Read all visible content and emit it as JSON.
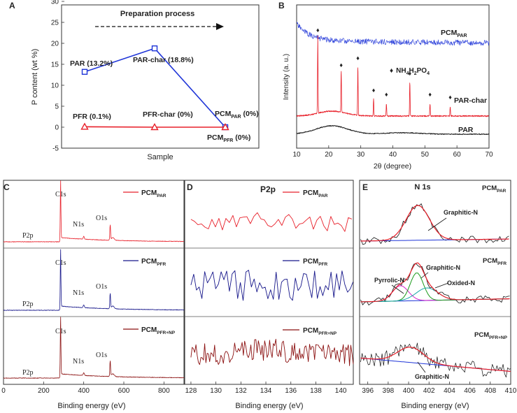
{
  "colors": {
    "red": "#e8202a",
    "blue": "#1f35d8",
    "darkred": "#8b1010",
    "navy": "#16168a",
    "black": "#111111",
    "green": "#1a9a1a",
    "magenta": "#d21cc8",
    "cyan": "#1aa8a8"
  },
  "chart_data": [
    {
      "panel": "A",
      "type": "line",
      "xlabel": "Sample",
      "ylabel": "P content (wt %)",
      "ylim": [
        -5,
        30
      ],
      "yticks": [
        "-5",
        "0",
        "5",
        "10",
        "15",
        "20",
        "25",
        "30"
      ],
      "annotation": "Preparation process",
      "series": [
        {
          "points": [
            {
              "label": "PAR (13.2%)",
              "y": 13.2
            },
            {
              "label": "PAR-char (18.8%)",
              "y": 18.8
            },
            {
              "label_main": "PCM",
              "label_sub": "PAR",
              "label_tail": " (0%)",
              "y": 0
            }
          ]
        },
        {
          "points": [
            {
              "label": "PFR (0.1%)",
              "y": 0.1
            },
            {
              "label": "PFR-char (0%)",
              "y": 0
            },
            {
              "label_main": "PCM",
              "label_sub": "PFR",
              "label_tail": " (0%)",
              "y": 0
            }
          ]
        }
      ]
    },
    {
      "panel": "B",
      "type": "line",
      "xlabel": "2θ (degree)",
      "ylabel": "Intensity (a. u.)",
      "xlim": [
        10,
        70
      ],
      "xticks": [
        "10",
        "20",
        "30",
        "40",
        "50",
        "60",
        "70"
      ],
      "series": [
        {
          "label_main": "PCM",
          "label_sub": "PAR"
        },
        {
          "name": "PAR-char",
          "peaks": [
            16.6,
            23.9,
            29.1,
            34.0,
            38.0,
            45.3,
            51.6,
            57.9
          ]
        },
        {
          "name": "PAR"
        }
      ],
      "legend": {
        "symbol": "♦",
        "main": "NH",
        "s1": "4",
        "mid1": "H",
        "s2": "2",
        "mid2": "PO",
        "s3": "4"
      }
    },
    {
      "panel": "C",
      "type": "line",
      "xlabel": "Binding energy (eV)",
      "xlim": [
        0,
        900
      ],
      "xticks": [
        "0",
        "200",
        "400",
        "600",
        "800"
      ],
      "peak_labels": [
        "C1s",
        "N1s",
        "O1s",
        "P2p"
      ],
      "peaks_ev": [
        284.6,
        400,
        532,
        133
      ],
      "series": [
        {
          "label_main": "PCM",
          "label_sub": "PAR"
        },
        {
          "label_main": "PCM",
          "label_sub": "PFR"
        },
        {
          "label_main": "PCM",
          "label_sub": "PFR+NP"
        }
      ]
    },
    {
      "panel": "D",
      "type": "line",
      "title": "P2p",
      "xlabel": "Binding energy (eV)",
      "xlim": [
        127.5,
        141
      ],
      "xticks": [
        "128",
        "130",
        "132",
        "134",
        "136",
        "138",
        "140"
      ],
      "series": [
        {
          "label_main": "PCM",
          "label_sub": "PAR"
        },
        {
          "label_main": "PCM",
          "label_sub": "PFR"
        },
        {
          "label_main": "PCM",
          "label_sub": "PFR+NP"
        }
      ]
    },
    {
      "panel": "E",
      "type": "line",
      "title": "N 1s",
      "xlabel": "Binding energy (eV)",
      "xlim": [
        395.2,
        410
      ],
      "xticks": [
        "396",
        "398",
        "400",
        "402",
        "404",
        "406",
        "408",
        "410"
      ],
      "series": [
        {
          "label_main": "PCM",
          "label_sub": "PAR",
          "components": [
            "Graphitic-N"
          ]
        },
        {
          "label_main": "PCM",
          "label_sub": "PFR",
          "components": [
            "Pyrrolic-N",
            "Graphitic-N",
            "Oxided-N"
          ]
        },
        {
          "label_main": "PCM",
          "label_sub": "PFR+NP",
          "components": [
            "Graphitic-N"
          ]
        }
      ]
    }
  ]
}
